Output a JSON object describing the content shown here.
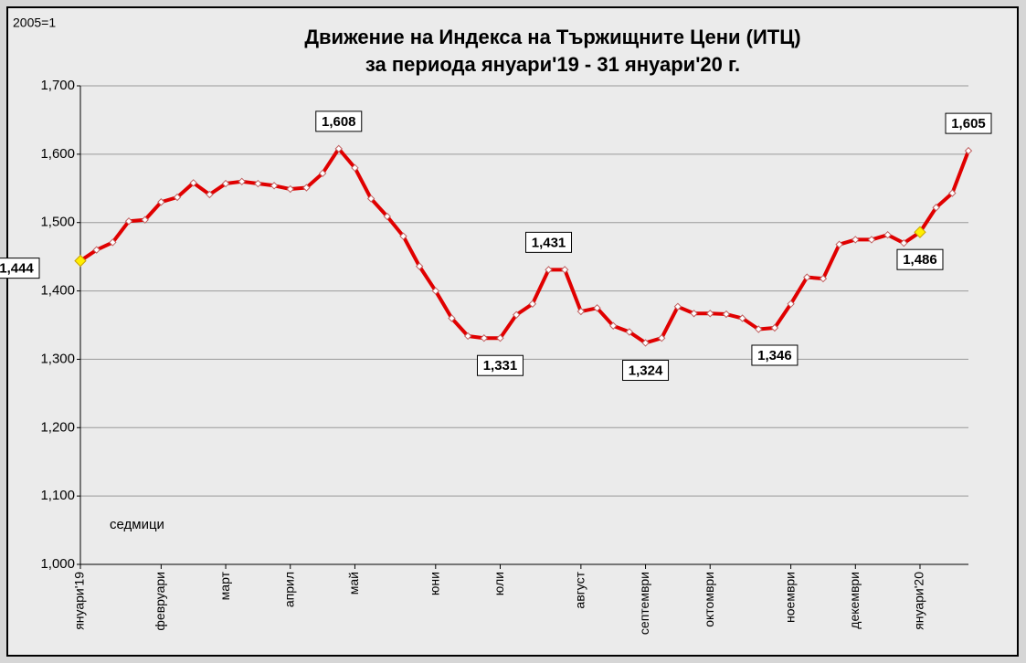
{
  "chart_data": {
    "type": "line",
    "title": "Движение на Индекса на Тържищните Цени (ИТЦ)",
    "subtitle": "за периода януари'19 - 31 януари'20 г.",
    "annotations": [
      "2005=1",
      "седмици"
    ],
    "categories": [
      "януари'19",
      null,
      null,
      null,
      null,
      "февруари",
      null,
      null,
      null,
      "март",
      null,
      null,
      null,
      "април",
      null,
      null,
      null,
      "май",
      null,
      null,
      null,
      null,
      "юни",
      null,
      null,
      null,
      "юли",
      null,
      null,
      null,
      null,
      "август",
      null,
      null,
      null,
      "септември",
      null,
      null,
      null,
      "октомври",
      null,
      null,
      null,
      null,
      "ноември",
      null,
      null,
      null,
      "декември",
      null,
      null,
      null,
      "януари'20",
      null,
      null,
      null
    ],
    "series": [
      {
        "name": "ИТЦ",
        "color": "#e00000",
        "values": [
          1.444,
          1.46,
          1.471,
          1.502,
          1.504,
          1.53,
          1.537,
          1.558,
          1.541,
          1.557,
          1.56,
          1.557,
          1.554,
          1.549,
          1.551,
          1.572,
          1.608,
          1.58,
          1.535,
          1.509,
          1.48,
          1.436,
          1.4,
          1.36,
          1.334,
          1.331,
          1.331,
          1.365,
          1.381,
          1.431,
          1.431,
          1.37,
          1.375,
          1.349,
          1.34,
          1.324,
          1.331,
          1.377,
          1.367,
          1.367,
          1.366,
          1.36,
          1.344,
          1.346,
          1.381,
          1.42,
          1.418,
          1.468,
          1.475,
          1.475,
          1.482,
          1.47,
          1.486,
          1.522,
          1.543,
          1.605
        ],
        "value_labels": [
          "1,444",
          null,
          null,
          null,
          null,
          null,
          null,
          null,
          null,
          null,
          null,
          null,
          null,
          null,
          null,
          null,
          "1,608",
          null,
          null,
          null,
          null,
          null,
          null,
          null,
          null,
          null,
          "1,331",
          null,
          null,
          "1,431",
          null,
          null,
          null,
          null,
          null,
          "1,324",
          null,
          null,
          null,
          null,
          null,
          null,
          null,
          "1,346",
          null,
          null,
          null,
          null,
          null,
          null,
          null,
          null,
          "1,486",
          null,
          null,
          "1,605"
        ],
        "highlight_points": [
          0,
          52
        ],
        "highlight_color": "#ffee00"
      }
    ],
    "ylim": [
      1.0,
      1.7
    ],
    "yticks": [
      {
        "value": 1.0,
        "label": "1,000"
      },
      {
        "value": 1.1,
        "label": "1,100"
      },
      {
        "value": 1.2,
        "label": "1,200"
      },
      {
        "value": 1.3,
        "label": "1,300"
      },
      {
        "value": 1.4,
        "label": "1,400"
      },
      {
        "value": 1.5,
        "label": "1,500"
      },
      {
        "value": 1.6,
        "label": "1,600"
      },
      {
        "value": 1.7,
        "label": "1,700"
      }
    ],
    "grid": true
  }
}
